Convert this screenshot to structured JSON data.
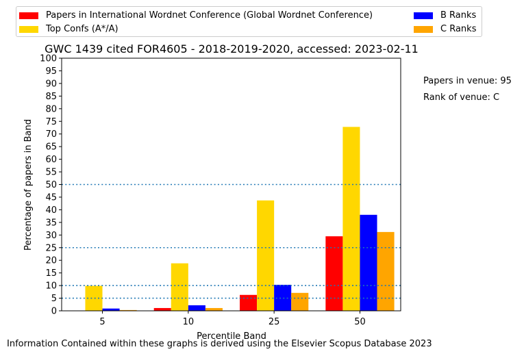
{
  "chart_data": {
    "type": "bar",
    "title": "GWC 1439 cited FOR4605 - 2018-2019-2020, accessed: 2023-02-11",
    "xlabel": "Percentile Band",
    "ylabel": "Percentage of papers in Band",
    "ylim": [
      0,
      100
    ],
    "yticks": [
      0,
      5,
      10,
      15,
      20,
      25,
      30,
      35,
      40,
      45,
      50,
      55,
      60,
      65,
      70,
      75,
      80,
      85,
      90,
      95,
      100
    ],
    "categories": [
      "5",
      "10",
      "25",
      "50"
    ],
    "series": [
      {
        "name": "Papers in International Wordnet Conference (Global Wordnet Conference)",
        "color": "#ff0000",
        "values": [
          0,
          1.1,
          6.3,
          29.5
        ]
      },
      {
        "name": "Top Confs (A*/A)",
        "color": "#ffd700",
        "values": [
          9.9,
          18.8,
          43.7,
          72.8
        ]
      },
      {
        "name": "B Ranks",
        "color": "#0000ff",
        "values": [
          0.9,
          2.2,
          10.3,
          38.0
        ]
      },
      {
        "name": "C Ranks",
        "color": "#ffa500",
        "values": [
          0.3,
          1.1,
          7.1,
          31.2
        ]
      }
    ],
    "reference_lines": [
      5,
      10,
      25,
      50
    ],
    "reference_line_color": "#1f77b4",
    "grid": false,
    "legend_position": "top"
  },
  "annotations": {
    "papers_in_venue": "Papers in venue: 95",
    "rank_of_venue": "Rank of venue: C"
  },
  "footer": "Information Contained within these graphs is derived using the Elsevier Scopus Database 2023"
}
